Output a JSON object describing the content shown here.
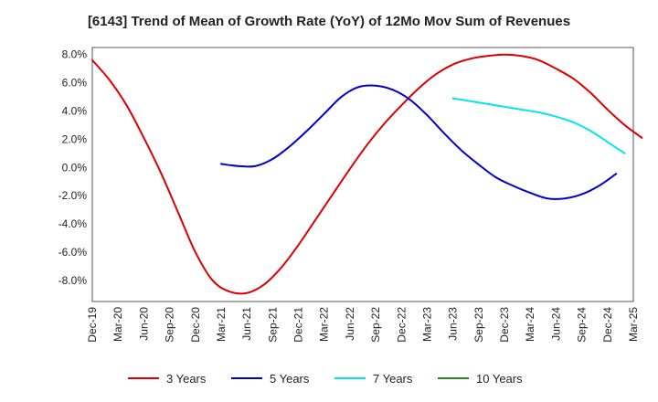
{
  "chart_data": {
    "type": "line",
    "title": "[6143]  Trend of Mean of Growth Rate (YoY) of 12Mo Mov Sum of Revenues",
    "xlabel": "",
    "ylabel": "",
    "ylim": [
      -9.5,
      8.5
    ],
    "yticks": [
      8.0,
      6.0,
      4.0,
      2.0,
      0.0,
      -2.0,
      -4.0,
      -6.0,
      -8.0
    ],
    "ytick_labels": [
      "8.0%",
      "6.0%",
      "4.0%",
      "2.0%",
      "0.0%",
      "-2.0%",
      "-4.0%",
      "-6.0%",
      "-8.0%"
    ],
    "x_tick_labels": [
      "Dec-19",
      "Mar-20",
      "Jun-20",
      "Sep-20",
      "Dec-20",
      "Mar-21",
      "Jun-21",
      "Sep-21",
      "Dec-21",
      "Mar-22",
      "Jun-22",
      "Sep-22",
      "Dec-22",
      "Mar-23",
      "Jun-23",
      "Sep-23",
      "Dec-23",
      "Mar-24",
      "Jun-24",
      "Sep-24",
      "Dec-24",
      "Mar-25"
    ],
    "grid": true,
    "legend_position": "bottom",
    "series": [
      {
        "name": "3 Years",
        "color": "#dd0000",
        "start_index": 0,
        "values": [
          7.6,
          6.2,
          4.4,
          2.1,
          -0.4,
          -3.2,
          -6.0,
          -8.0,
          -8.8,
          -8.9,
          -8.3,
          -7.1,
          -5.5,
          -3.7,
          -1.9,
          -0.1,
          1.6,
          3.1,
          4.4,
          5.6,
          6.6,
          7.3,
          7.7,
          7.9,
          8.0,
          7.9,
          7.6,
          7.0,
          6.3,
          5.3,
          4.1,
          3.0,
          2.1
        ]
      },
      {
        "name": "5 Years",
        "color": "#0000cc",
        "start_index": 15,
        "values": [
          0.25,
          0.1,
          0.1,
          0.6,
          1.5,
          2.6,
          3.8,
          5.0,
          5.7,
          5.8,
          5.5,
          4.8,
          3.7,
          2.4,
          1.2,
          0.2,
          -0.7,
          -1.3,
          -1.8,
          -2.2,
          -2.2,
          -1.9,
          -1.3,
          -0.45
        ]
      },
      {
        "name": "7 Years",
        "color": "#00e5ee",
        "start_index": 42,
        "values": [
          4.9,
          4.7,
          4.5,
          4.3,
          4.1,
          3.9,
          3.6,
          3.2,
          2.6,
          1.8,
          1.0
        ]
      },
      {
        "name": "10 Years",
        "color": "#228b22",
        "start_index": 0,
        "values": []
      }
    ]
  }
}
